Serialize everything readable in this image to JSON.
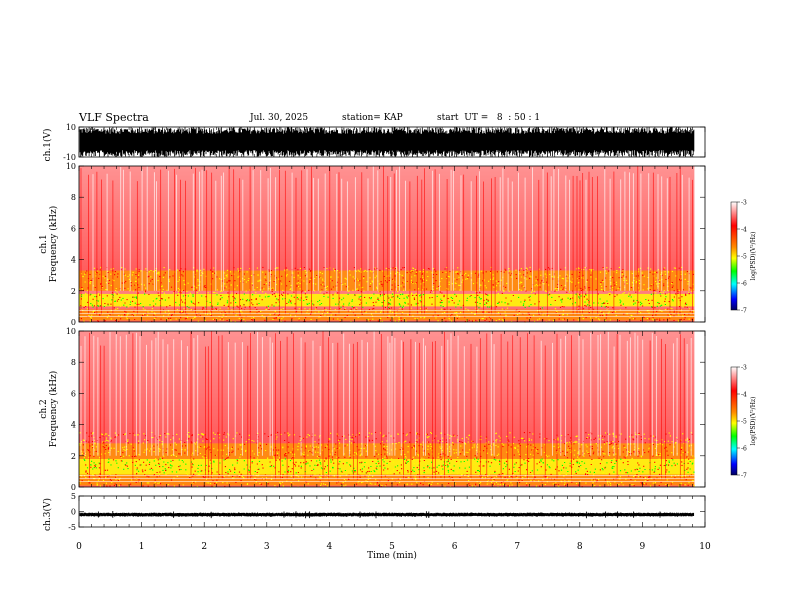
{
  "header": {
    "title": "VLF Spectra",
    "date": "Jul. 30, 2025",
    "station_label": "station= KAP",
    "start_label": "start  UT =   8  : 50 : 1"
  },
  "chart_data": [
    {
      "type": "line",
      "name": "ch1-waveform",
      "ylabel": "ch.1(V)",
      "ylim": [
        -10,
        10
      ],
      "yticks": [
        "10",
        "-10"
      ],
      "description_series": "dense saturated waveform spanning about -10 to 10 V"
    },
    {
      "type": "heatmap",
      "name": "ch1-spectrogram",
      "ylabel_line1": "ch.1",
      "ylabel_line2": "Frequency  (kHz)",
      "ylim": [
        0,
        10
      ],
      "yticks": [
        "0",
        "2",
        "4",
        "6",
        "8",
        "10"
      ],
      "bands": [
        {
          "from_khz": 0.1,
          "to_khz": 0.8,
          "level": "red-orange"
        },
        {
          "from_khz": 1.0,
          "to_khz": 1.8,
          "level": "yellow-green"
        },
        {
          "from_khz": 2.0,
          "to_khz": 3.3,
          "level": "orange-yellow"
        },
        {
          "from_khz": 3.3,
          "to_khz": 10.0,
          "level": "red"
        }
      ],
      "colorbar": {
        "label": "log(PSD)(V²/Hz)",
        "ticks": [
          "-3",
          "-4",
          "-5",
          "-6",
          "-7"
        ],
        "range": [
          -7,
          -3
        ]
      }
    },
    {
      "type": "heatmap",
      "name": "ch2-spectrogram",
      "ylabel_line1": "ch.2",
      "ylabel_line2": "Frequency  (kHz)",
      "ylim": [
        0,
        10
      ],
      "yticks": [
        "0",
        "2",
        "4",
        "6",
        "8",
        "10"
      ],
      "bands": [
        {
          "from_khz": 0.1,
          "to_khz": 0.8,
          "level": "red-orange"
        },
        {
          "from_khz": 0.8,
          "to_khz": 1.8,
          "level": "yellow-green"
        },
        {
          "from_khz": 1.8,
          "to_khz": 2.8,
          "level": "orange-yellow"
        },
        {
          "from_khz": 2.8,
          "to_khz": 10.0,
          "level": "red"
        }
      ],
      "colorbar": {
        "label": "log(PSD)(V²/Hz)",
        "ticks": [
          "-3",
          "-4",
          "-5",
          "-6",
          "-7"
        ],
        "range": [
          -7,
          -3
        ]
      }
    },
    {
      "type": "line",
      "name": "ch3-waveform",
      "ylabel": "ch.3(V)",
      "ylim": [
        -5,
        5
      ],
      "yticks": [
        "5",
        "0",
        "-5"
      ],
      "description_series": "narrow signal band near -1 V"
    }
  ],
  "xaxis": {
    "label": "Time  (min)",
    "range": [
      0,
      10
    ],
    "ticks": [
      "0",
      "1",
      "2",
      "3",
      "4",
      "5",
      "6",
      "7",
      "8",
      "9",
      "10"
    ],
    "data_end_min": 9.83
  },
  "colors": {
    "white": "#ffffff",
    "red": "#ff0000",
    "orange": "#ff8c00",
    "yellow": "#ffff00",
    "green": "#00ff00",
    "cyan": "#00ffff",
    "blue": "#0000ff",
    "navy": "#000060"
  }
}
